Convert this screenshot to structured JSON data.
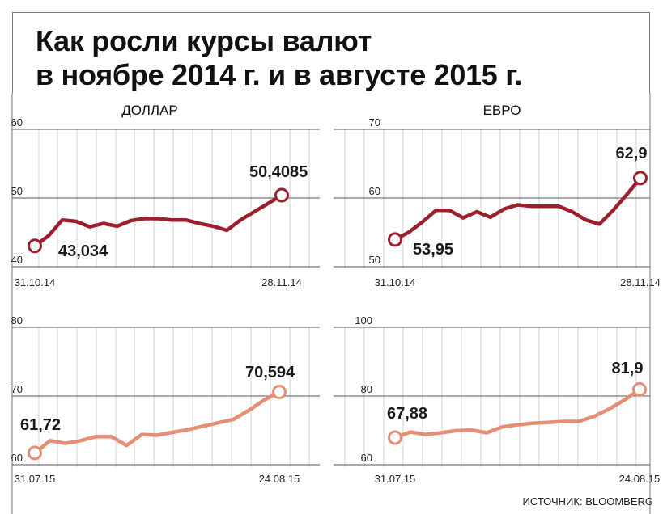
{
  "title_lines": [
    "Как росли курсы валют",
    "в ноябре 2014 г. и в августе 2015 г."
  ],
  "source": "ИСТОЧНИК: BLOOMBERG",
  "colors": {
    "dark_series": "#9c1f2e",
    "light_series": "#e48f73",
    "grid": "#c8c8c8"
  },
  "chart_data": [
    {
      "type": "line",
      "title": "ДОЛЛАР",
      "ylim": [
        40,
        60
      ],
      "yticks": [
        40,
        50,
        60
      ],
      "x_start_label": "31.10.14",
      "x_end_label": "28.11.14",
      "color": "#9c1f2e",
      "values": [
        43.034,
        44.5,
        46.8,
        46.6,
        45.8,
        46.3,
        45.9,
        46.7,
        47.0,
        47.0,
        46.8,
        46.8,
        46.3,
        45.9,
        45.3,
        46.8,
        48.0,
        49.2,
        50.4085
      ],
      "start_value_label": "43,034",
      "end_value_label": "50,4085"
    },
    {
      "type": "line",
      "title": "ЕВРО",
      "ylim": [
        50,
        70
      ],
      "yticks": [
        50,
        60,
        70
      ],
      "x_start_label": "31.10.14",
      "x_end_label": "28.11.14",
      "color": "#9c1f2e",
      "values": [
        53.95,
        55.0,
        56.5,
        58.2,
        58.2,
        57.1,
        58.0,
        57.2,
        58.4,
        59.0,
        58.8,
        58.8,
        58.8,
        58.0,
        56.8,
        56.2,
        58.2,
        60.5,
        62.9
      ],
      "start_value_label": "53,95",
      "end_value_label": "62,9"
    },
    {
      "type": "line",
      "title": "",
      "ylim": [
        60,
        80
      ],
      "yticks": [
        60,
        70,
        80
      ],
      "x_start_label": "31.07.15",
      "x_end_label": "24.08.15",
      "color": "#e48f73",
      "values": [
        61.72,
        63.5,
        63.1,
        63.5,
        64.1,
        64.1,
        62.8,
        64.4,
        64.3,
        64.7,
        65.1,
        65.6,
        66.1,
        66.6,
        67.9,
        69.4,
        70.594
      ],
      "start_value_label": "61,72",
      "end_value_label": "70,594"
    },
    {
      "type": "line",
      "title": "",
      "ylim": [
        60,
        100
      ],
      "yticks": [
        60,
        80,
        100
      ],
      "x_start_label": "31.07.15",
      "x_end_label": "24.08.15",
      "color": "#e48f73",
      "values": [
        67.88,
        69.5,
        68.8,
        69.3,
        69.9,
        70.1,
        69.3,
        71.0,
        71.6,
        72.1,
        72.3,
        72.6,
        72.6,
        74.0,
        76.2,
        78.8,
        81.9
      ],
      "start_value_label": "67,88",
      "end_value_label": "81,9"
    }
  ]
}
